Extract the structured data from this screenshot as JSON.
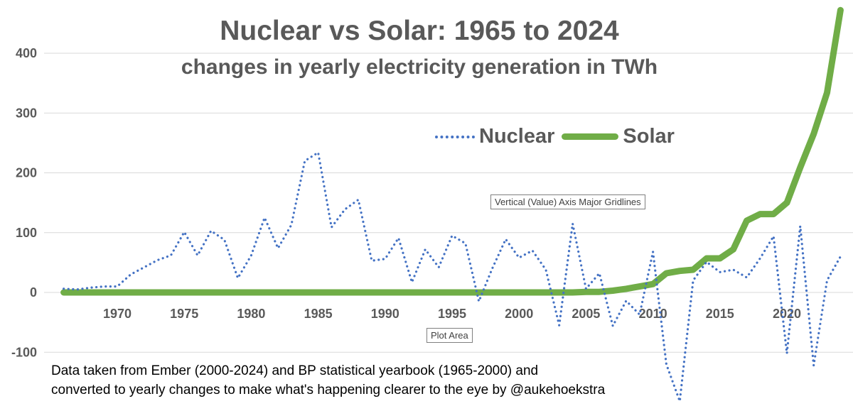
{
  "chart_data": {
    "type": "line",
    "title": "Nuclear vs Solar: 1965 to 2024",
    "subtitle": "changes in yearly electricity generation in TWh",
    "xlabel": "",
    "ylabel": "",
    "ylim": [
      -100,
      400
    ],
    "yticks": [
      -100,
      0,
      100,
      200,
      300,
      400
    ],
    "xticks": [
      1970,
      1975,
      1980,
      1985,
      1990,
      1995,
      2000,
      2005,
      2010,
      2015,
      2020
    ],
    "grid": "horizontal major gridlines",
    "legend_placement": "top-center",
    "x": [
      1966,
      1967,
      1968,
      1969,
      1970,
      1971,
      1972,
      1973,
      1974,
      1975,
      1976,
      1977,
      1978,
      1979,
      1980,
      1981,
      1982,
      1983,
      1984,
      1985,
      1986,
      1987,
      1988,
      1989,
      1990,
      1991,
      1992,
      1993,
      1994,
      1995,
      1996,
      1997,
      1998,
      1999,
      2000,
      2001,
      2002,
      2003,
      2004,
      2005,
      2006,
      2007,
      2008,
      2009,
      2010,
      2011,
      2012,
      2013,
      2014,
      2015,
      2016,
      2017,
      2018,
      2019,
      2020,
      2021,
      2022,
      2023,
      2024
    ],
    "series": [
      {
        "name": "Nuclear",
        "color": "#4472c4",
        "style": "dotted",
        "values": [
          6,
          5,
          8,
          10,
          10,
          30,
          42,
          54,
          62,
          101,
          62,
          103,
          88,
          24,
          62,
          125,
          74,
          113,
          220,
          234,
          109,
          139,
          155,
          53,
          56,
          91,
          17,
          72,
          42,
          95,
          82,
          -15,
          40,
          89,
          58,
          70,
          38,
          -55,
          115,
          6,
          32,
          -56,
          -14,
          -37,
          68,
          -120,
          -182,
          20,
          51,
          34,
          38,
          25,
          57,
          94,
          -102,
          111,
          -122,
          20,
          60
        ]
      },
      {
        "name": "Solar",
        "color": "#70ad47",
        "style": "solid",
        "values": [
          0,
          0,
          0,
          0,
          0,
          0,
          0,
          0,
          0,
          0,
          0,
          0,
          0,
          0,
          0,
          0,
          0,
          0,
          0,
          0,
          0,
          0,
          0,
          0,
          0,
          0,
          0,
          0,
          0,
          0,
          0,
          0,
          0,
          0,
          0,
          0,
          0,
          0,
          0,
          1,
          1,
          3,
          6,
          10,
          14,
          32,
          36,
          38,
          57,
          57,
          72,
          120,
          131,
          131,
          150,
          209,
          265,
          334,
          472
        ]
      }
    ]
  },
  "legend": {
    "nuclear": "Nuclear",
    "solar": "Solar"
  },
  "footer": {
    "line1": "Data taken from Ember (2000-2024) and BP statistical yearbook (1965-2000) and",
    "line2": "converted to yearly changes to make what's happening clearer to the eye by @aukehoekstra"
  },
  "tooltips": {
    "gridlines": "Vertical (Value) Axis Major Gridlines",
    "plot_area": "Plot Area"
  }
}
